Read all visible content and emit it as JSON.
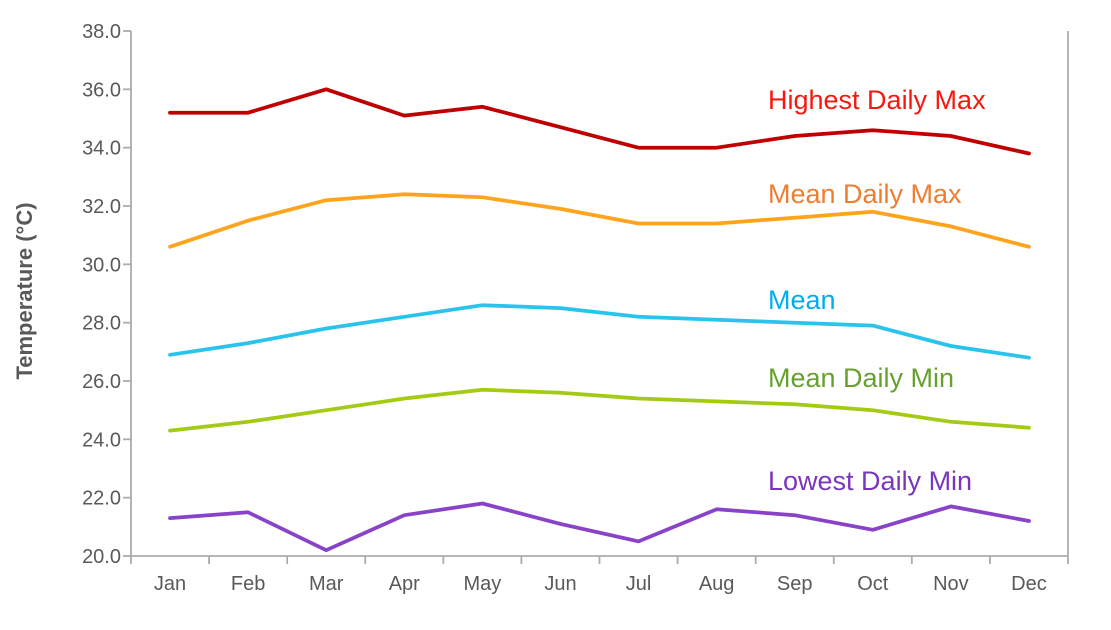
{
  "chart_data": {
    "type": "line",
    "title": "",
    "xlabel": "",
    "ylabel": "Temperature (°C)",
    "categories": [
      "Jan",
      "Feb",
      "Mar",
      "Apr",
      "May",
      "Jun",
      "Jul",
      "Aug",
      "Sep",
      "Oct",
      "Nov",
      "Dec"
    ],
    "y_axis": {
      "min": 20.0,
      "max": 38.0,
      "step": 2.0,
      "tick_decimals": 1
    },
    "grid": false,
    "legend": "inline-colored-labels",
    "series": [
      {
        "name": "Highest Daily Max",
        "line_color": "#C00000",
        "label_color": "#F8170E",
        "values": [
          35.2,
          35.2,
          36.0,
          35.1,
          35.4,
          34.7,
          34.0,
          34.0,
          34.4,
          34.6,
          34.4,
          33.8
        ]
      },
      {
        "name": "Mean Daily Max",
        "line_color": "#FFA41C",
        "label_color": "#ED7D31",
        "values": [
          30.6,
          31.5,
          32.2,
          32.4,
          32.3,
          31.9,
          31.4,
          31.4,
          31.6,
          31.8,
          31.3,
          30.6
        ]
      },
      {
        "name": "Mean",
        "line_color": "#29C3EC",
        "label_color": "#00AEEF",
        "values": [
          26.9,
          27.3,
          27.8,
          28.2,
          28.6,
          28.5,
          28.2,
          28.1,
          28.0,
          27.9,
          27.2,
          26.8
        ]
      },
      {
        "name": "Mean Daily Min",
        "line_color": "#A4CB13",
        "label_color": "#66A12E",
        "values": [
          24.3,
          24.6,
          25.0,
          25.4,
          25.7,
          25.6,
          25.4,
          25.3,
          25.2,
          25.0,
          24.6,
          24.4
        ]
      },
      {
        "name": "Lowest Daily Min",
        "line_color": "#8943C9",
        "label_color": "#7A35BC",
        "values": [
          21.3,
          21.5,
          20.2,
          21.4,
          21.8,
          21.1,
          20.5,
          21.6,
          21.4,
          20.9,
          21.7,
          21.2
        ]
      }
    ],
    "colors": {
      "axis_line": "#ACACAC",
      "tick_text": "#595959",
      "axis_title_text": "#595959",
      "background": "#FFFFFF"
    }
  }
}
